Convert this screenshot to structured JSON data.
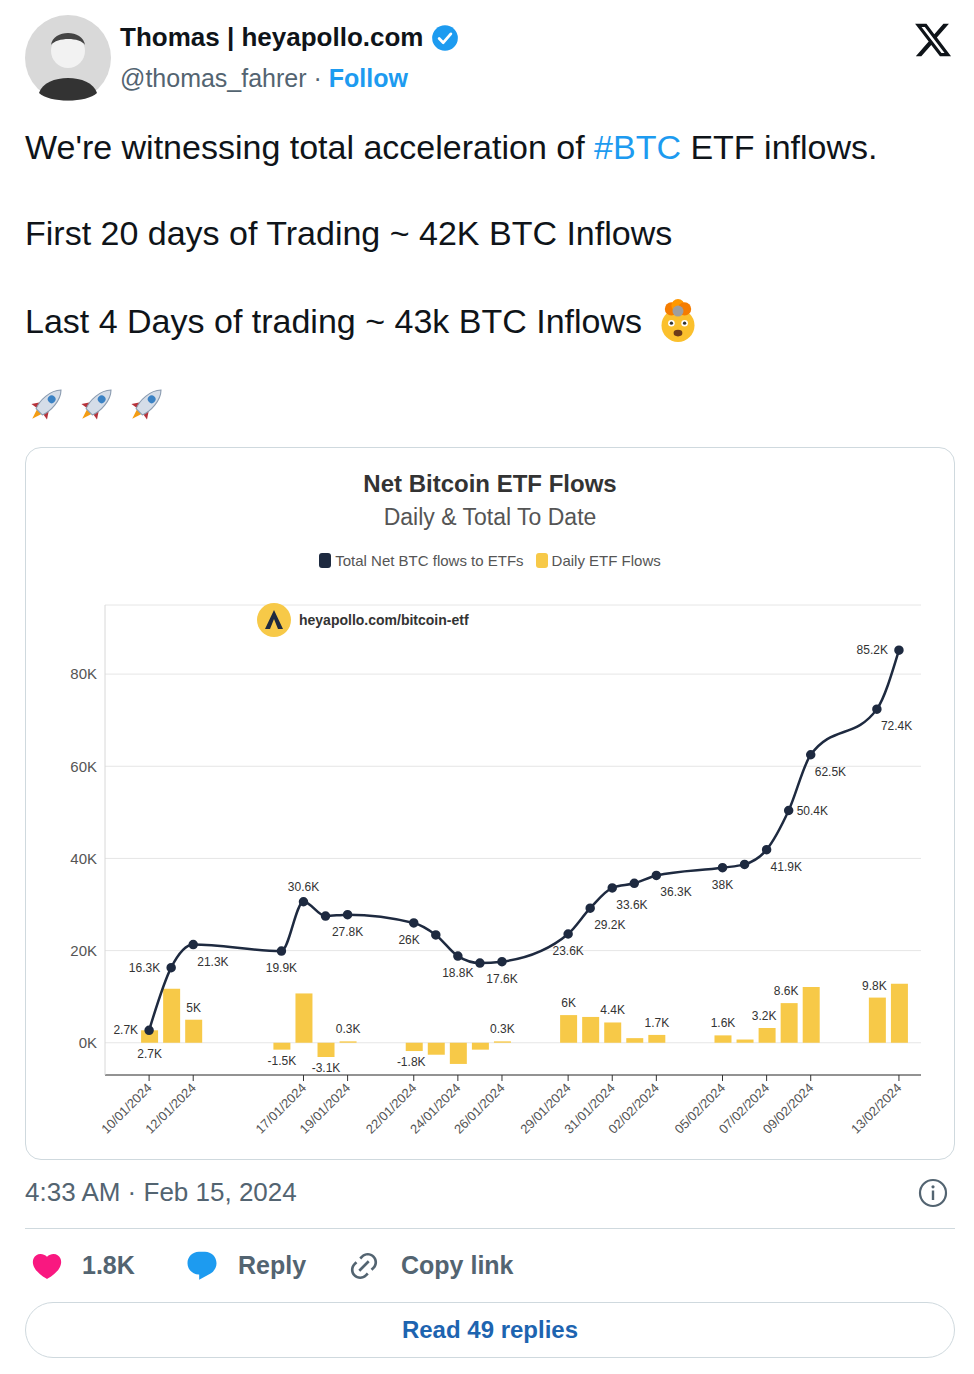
{
  "tweet": {
    "author": {
      "name": "Thomas | heyapollo.com",
      "handle": "@thomas_fahrer",
      "separator": "·",
      "follow": "Follow"
    },
    "text": [
      [
        {
          "text": "We're witnessing total acceleration of "
        },
        {
          "text": "#BTC",
          "link": true
        },
        {
          "text": " ETF inflows."
        }
      ],
      [
        {
          "text": "First 20 days of Trading ~ 42K BTC Inflows"
        }
      ],
      [
        {
          "text": "Last 4 Days of trading ~ 43k BTC Inflows"
        }
      ]
    ],
    "timestamp": "4:33 AM · Feb 15, 2024",
    "likes": "1.8K",
    "reply": "Reply",
    "copy_link": "Copy link",
    "read_replies": "Read 49 replies"
  },
  "chart_data": {
    "type": "bar",
    "title": "Net Bitcoin ETF Flows",
    "subtitle": "Daily & Total To Date",
    "watermark": "heyapollo.com/bitcoin-etf",
    "x": [
      "2024-01-10",
      "2024-01-11",
      "2024-01-12",
      "2024-01-16",
      "2024-01-17",
      "2024-01-18",
      "2024-01-19",
      "2024-01-22",
      "2024-01-23",
      "2024-01-24",
      "2024-01-25",
      "2024-01-26",
      "2024-01-29",
      "2024-01-30",
      "2024-01-31",
      "2024-02-01",
      "2024-02-02",
      "2024-02-05",
      "2024-02-06",
      "2024-02-07",
      "2024-02-08",
      "2024-02-09",
      "2024-02-12",
      "2024-02-13"
    ],
    "xlim": [
      "2024-01-08",
      "2024-02-14"
    ],
    "xticks": [
      {
        "value": "2024-01-10",
        "label": "10/01/2024"
      },
      {
        "value": "2024-01-12",
        "label": "12/01/2024"
      },
      {
        "value": "2024-01-17",
        "label": "17/01/2024"
      },
      {
        "value": "2024-01-19",
        "label": "19/01/2024"
      },
      {
        "value": "2024-01-22",
        "label": "22/01/2024"
      },
      {
        "value": "2024-01-24",
        "label": "24/01/2024"
      },
      {
        "value": "2024-01-26",
        "label": "26/01/2024"
      },
      {
        "value": "2024-01-29",
        "label": "29/01/2024"
      },
      {
        "value": "2024-01-31",
        "label": "31/01/2024"
      },
      {
        "value": "2024-02-02",
        "label": "02/02/2024"
      },
      {
        "value": "2024-02-05",
        "label": "05/02/2024"
      },
      {
        "value": "2024-02-07",
        "label": "07/02/2024"
      },
      {
        "value": "2024-02-09",
        "label": "09/02/2024"
      },
      {
        "value": "2024-02-13",
        "label": "13/02/2024"
      }
    ],
    "ylim": [
      -7000,
      95000
    ],
    "yticks": [
      {
        "value": 0,
        "label": "0K"
      },
      {
        "value": 20000,
        "label": "20K"
      },
      {
        "value": 40000,
        "label": "40K"
      },
      {
        "value": 60000,
        "label": "60K"
      },
      {
        "value": 80000,
        "label": "80K"
      }
    ],
    "series": [
      {
        "name": "Total Net BTC flows to ETFs",
        "type": "line",
        "color": "#1e2a40",
        "marker": "circle",
        "values": [
          2700,
          16300,
          21300,
          19900,
          30600,
          27500,
          27800,
          26000,
          23400,
          18800,
          17300,
          17600,
          23600,
          29200,
          33600,
          34600,
          36300,
          38000,
          38700,
          41900,
          50400,
          62500,
          72400,
          85200
        ],
        "value_labels": [
          "2.7K",
          "16.3K",
          "21.3K",
          "19.9K",
          "30.6K",
          null,
          "27.8K",
          "26K",
          null,
          "18.8K",
          null,
          "17.6K",
          "23.6K",
          "29.2K",
          "33.6K",
          null,
          "36.3K",
          "38K",
          null,
          "41.9K",
          "50.4K",
          "62.5K",
          "72.4K",
          "85.2K"
        ]
      },
      {
        "name": "Daily ETF Flows",
        "type": "bar",
        "color": "#f7c948",
        "values": [
          2700,
          11700,
          5000,
          -1500,
          10700,
          -3100,
          300,
          -1800,
          -2600,
          -4600,
          -1500,
          300,
          6000,
          5600,
          4400,
          1000,
          1700,
          1600,
          700,
          3200,
          8600,
          12100,
          9800,
          12800
        ],
        "value_labels": [
          "2.7K",
          null,
          "5K",
          "-1.5K",
          null,
          "-3.1K",
          "0.3K",
          "-1.8K",
          null,
          null,
          null,
          "0.3K",
          "6K",
          null,
          "4.4K",
          null,
          "1.7K",
          "1.6K",
          null,
          "3.2K",
          "8.6K",
          null,
          "9.8K",
          null
        ]
      }
    ],
    "legend": "top",
    "grid": true,
    "data_labels": true
  }
}
